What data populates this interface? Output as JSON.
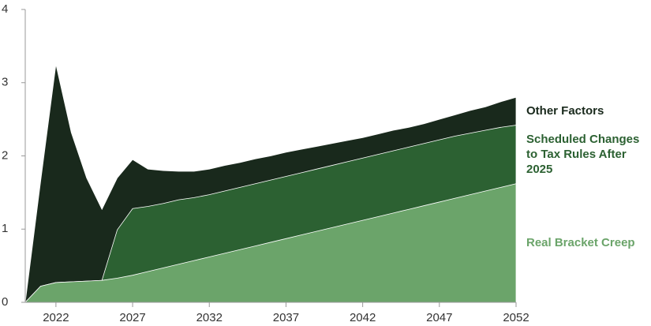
{
  "chart_data": {
    "type": "stacked-area",
    "x": [
      2020,
      2021,
      2022,
      2023,
      2024,
      2025,
      2026,
      2027,
      2028,
      2029,
      2030,
      2031,
      2032,
      2033,
      2034,
      2035,
      2036,
      2037,
      2038,
      2039,
      2040,
      2041,
      2042,
      2043,
      2044,
      2045,
      2046,
      2047,
      2048,
      2049,
      2050,
      2051,
      2052
    ],
    "series": [
      {
        "name": "Real Bracket Creep",
        "color": "#6ba46a",
        "values": [
          0,
          0.22,
          0.27,
          0.28,
          0.29,
          0.3,
          0.33,
          0.37,
          0.42,
          0.47,
          0.52,
          0.57,
          0.62,
          0.67,
          0.72,
          0.77,
          0.82,
          0.87,
          0.92,
          0.97,
          1.02,
          1.07,
          1.12,
          1.17,
          1.22,
          1.27,
          1.32,
          1.37,
          1.42,
          1.47,
          1.52,
          1.57,
          1.62
        ]
      },
      {
        "name": "Scheduled Changes to Tax Rules After 2025",
        "color": "#2c6132",
        "values": [
          0,
          0,
          0,
          0,
          0,
          0,
          0.66,
          0.91,
          0.89,
          0.88,
          0.88,
          0.86,
          0.85,
          0.85,
          0.85,
          0.85,
          0.85,
          0.85,
          0.85,
          0.85,
          0.85,
          0.85,
          0.85,
          0.85,
          0.85,
          0.85,
          0.85,
          0.85,
          0.85,
          0.84,
          0.83,
          0.82,
          0.8
        ]
      },
      {
        "name": "Other Factors",
        "color": "#19291c",
        "values": [
          0,
          1.43,
          2.98,
          2.04,
          1.41,
          0.97,
          0.71,
          0.67,
          0.51,
          0.45,
          0.39,
          0.36,
          0.35,
          0.35,
          0.34,
          0.34,
          0.33,
          0.33,
          0.32,
          0.31,
          0.3,
          0.29,
          0.28,
          0.28,
          0.28,
          0.27,
          0.27,
          0.28,
          0.29,
          0.31,
          0.32,
          0.35,
          0.38
        ]
      }
    ],
    "xlim": [
      2020,
      2052
    ],
    "xticks": [
      2022,
      2027,
      2032,
      2037,
      2042,
      2047,
      2052
    ],
    "ylim": [
      0,
      4
    ],
    "yticks": [
      0,
      1,
      2,
      3,
      4
    ]
  }
}
